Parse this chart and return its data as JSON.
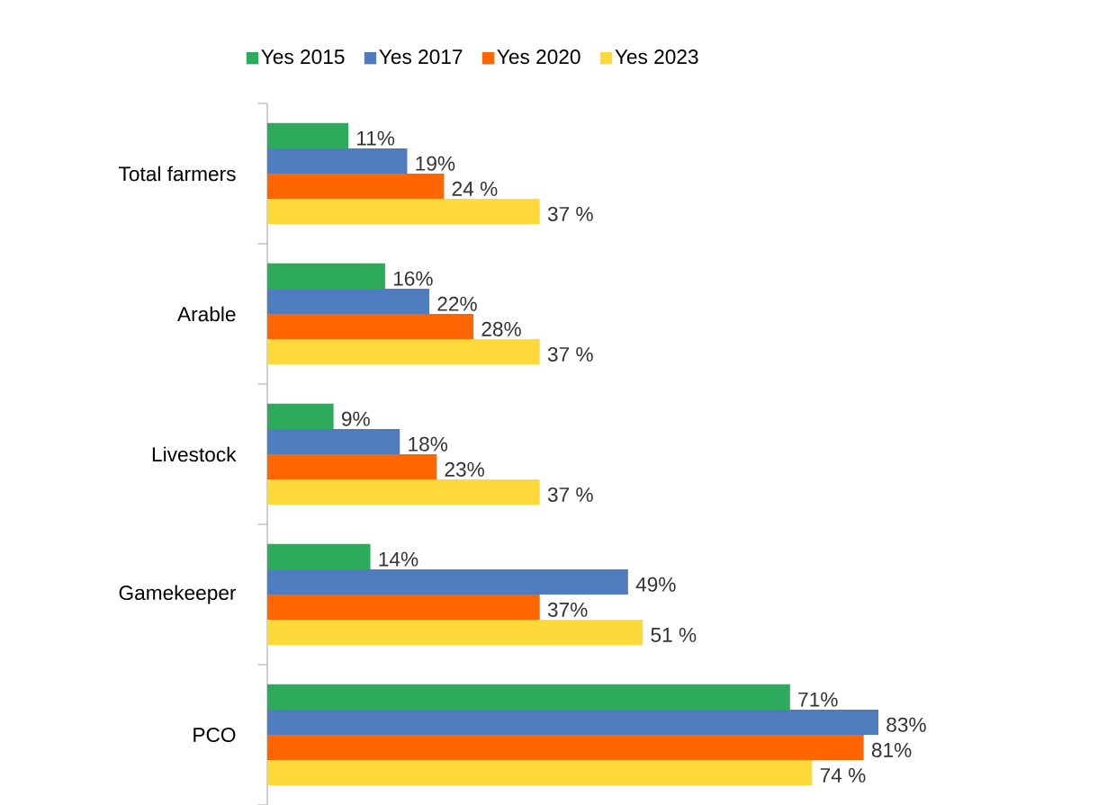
{
  "chart_data": {
    "type": "bar",
    "orientation": "horizontal",
    "legend": "top",
    "categories": [
      "Total farmers",
      "Arable",
      "Livestock",
      "Gamekeeper",
      "PCO"
    ],
    "series": [
      {
        "name": "Yes 2015",
        "color": "#2eaa5c",
        "values": [
          11,
          16,
          9,
          14,
          71
        ],
        "value_labels": [
          "11%",
          "16%",
          "9%",
          "14%",
          "71%"
        ]
      },
      {
        "name": "Yes 2017",
        "color": "#4f7bbf",
        "values": [
          19,
          22,
          18,
          49,
          83
        ],
        "value_labels": [
          "19%",
          "22%",
          "18%",
          "49%",
          "83%"
        ]
      },
      {
        "name": "Yes 2020",
        "color": "#ff6600",
        "values": [
          24,
          28,
          23,
          37,
          81
        ],
        "value_labels": [
          "24 %",
          "28%",
          "23%",
          "37%",
          "81%"
        ]
      },
      {
        "name": "Yes 2023",
        "color": "#ffd83a",
        "values": [
          37,
          37,
          37,
          51,
          74
        ],
        "value_labels": [
          "37 %",
          "37 %",
          "37 %",
          "51 %",
          "74 %"
        ]
      }
    ]
  }
}
